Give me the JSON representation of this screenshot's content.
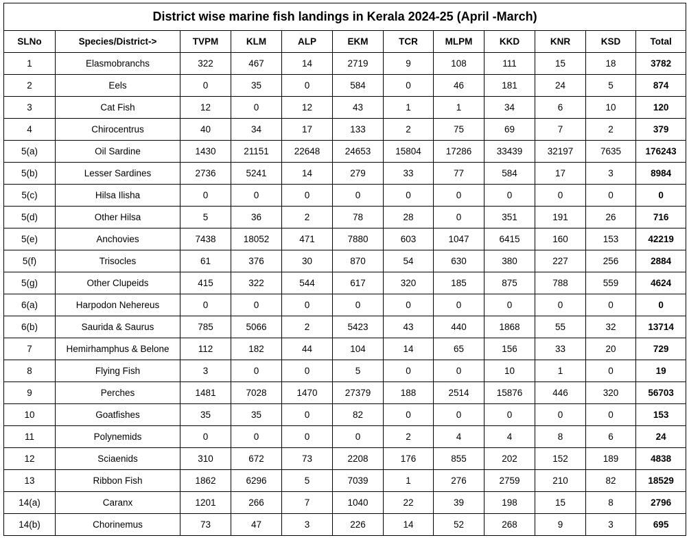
{
  "title": "District wise marine fish landings in Kerala 2024-25 (April -March)",
  "table": {
    "header": [
      "SLNo",
      "Species/District->",
      "TVPM",
      "KLM",
      "ALP",
      "EKM",
      "TCR",
      "MLPM",
      "KKD",
      "KNR",
      "KSD",
      "Total"
    ],
    "rows": [
      [
        "1",
        "Elasmobranchs",
        322,
        467,
        14,
        2719,
        9,
        108,
        111,
        15,
        18,
        3782
      ],
      [
        "2",
        "Eels",
        0,
        35,
        0,
        584,
        0,
        46,
        181,
        24,
        5,
        874
      ],
      [
        "3",
        "Cat Fish",
        12,
        0,
        12,
        43,
        1,
        1,
        34,
        6,
        10,
        120
      ],
      [
        "4",
        "Chirocentrus",
        40,
        34,
        17,
        133,
        2,
        75,
        69,
        7,
        2,
        379
      ],
      [
        "5(a)",
        "Oil Sardine",
        1430,
        21151,
        22648,
        24653,
        15804,
        17286,
        33439,
        32197,
        7635,
        176243
      ],
      [
        "5(b)",
        "Lesser Sardines",
        2736,
        5241,
        14,
        279,
        33,
        77,
        584,
        17,
        3,
        8984
      ],
      [
        "5(c)",
        "Hilsa Ilisha",
        0,
        0,
        0,
        0,
        0,
        0,
        0,
        0,
        0,
        0
      ],
      [
        "5(d)",
        "Other Hilsa",
        5,
        36,
        2,
        78,
        28,
        0,
        351,
        191,
        26,
        716
      ],
      [
        "5(e)",
        "Anchovies",
        7438,
        18052,
        471,
        7880,
        603,
        1047,
        6415,
        160,
        153,
        42219
      ],
      [
        "5(f)",
        "Trisocles",
        61,
        376,
        30,
        870,
        54,
        630,
        380,
        227,
        256,
        2884
      ],
      [
        "5(g)",
        "Other Clupeids",
        415,
        322,
        544,
        617,
        320,
        185,
        875,
        788,
        559,
        4624
      ],
      [
        "6(a)",
        "Harpodon Nehereus",
        0,
        0,
        0,
        0,
        0,
        0,
        0,
        0,
        0,
        0
      ],
      [
        "6(b)",
        "Saurida & Saurus",
        785,
        5066,
        2,
        5423,
        43,
        440,
        1868,
        55,
        32,
        13714
      ],
      [
        "7",
        "Hemirhamphus & Belone",
        112,
        182,
        44,
        104,
        14,
        65,
        156,
        33,
        20,
        729
      ],
      [
        "8",
        "Flying Fish",
        3,
        0,
        0,
        5,
        0,
        0,
        10,
        1,
        0,
        19
      ],
      [
        "9",
        "Perches",
        1481,
        7028,
        1470,
        27379,
        188,
        2514,
        15876,
        446,
        320,
        56703
      ],
      [
        "10",
        "Goatfishes",
        35,
        35,
        0,
        82,
        0,
        0,
        0,
        0,
        0,
        153
      ],
      [
        "11",
        "Polynemids",
        0,
        0,
        0,
        0,
        2,
        4,
        4,
        8,
        6,
        24
      ],
      [
        "12",
        "Sciaenids",
        310,
        672,
        73,
        2208,
        176,
        855,
        202,
        152,
        189,
        4838
      ],
      [
        "13",
        "Ribbon Fish",
        1862,
        6296,
        5,
        7039,
        1,
        276,
        2759,
        210,
        82,
        18529
      ],
      [
        "14(a)",
        "Caranx",
        1201,
        266,
        7,
        1040,
        22,
        39,
        198,
        15,
        8,
        2796
      ],
      [
        "14(b)",
        "Chorinemus",
        73,
        47,
        3,
        226,
        14,
        52,
        268,
        9,
        3,
        695
      ]
    ]
  }
}
